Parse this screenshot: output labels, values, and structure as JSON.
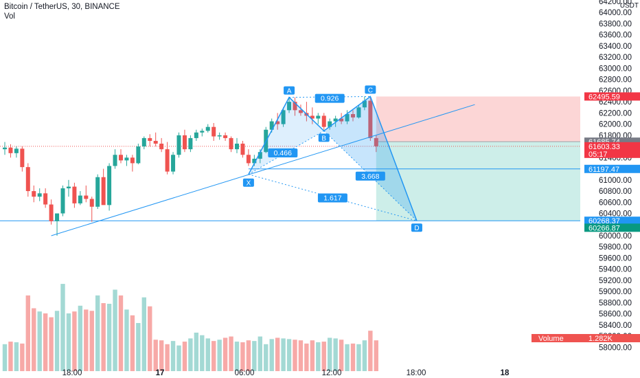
{
  "legend": {
    "symbol": "Bitcoin / TetherUS, 30, BINANCE",
    "indicator": "Vol"
  },
  "chart_data": {
    "type": "candlestick",
    "quote_unit": "USDT",
    "ylim": [
      57820,
      64200
    ],
    "y_ticks": [
      64200,
      64000,
      63800,
      63600,
      63400,
      63200,
      63000,
      62800,
      62600,
      62400,
      62200,
      62000,
      61800,
      61600,
      61400,
      61200,
      61000,
      60800,
      60600,
      60400,
      60200,
      60000,
      59800,
      59600,
      59400,
      59200,
      59000,
      58800,
      58600,
      58400,
      58200,
      58000
    ],
    "x_ticks": [
      {
        "label": "18:00",
        "bold": false
      },
      {
        "label": "17",
        "bold": true
      },
      {
        "label": "06:00",
        "bold": false
      },
      {
        "label": "12:00",
        "bold": false
      },
      {
        "label": "18:00",
        "bold": false
      },
      {
        "label": "18",
        "bold": true
      }
    ],
    "candles": [
      {
        "o": 61550,
        "h": 61680,
        "l": 61450,
        "c": 61580
      },
      {
        "o": 61580,
        "h": 61640,
        "l": 61400,
        "c": 61480
      },
      {
        "o": 61480,
        "h": 61600,
        "l": 61400,
        "c": 61560
      },
      {
        "o": 61560,
        "h": 61600,
        "l": 61150,
        "c": 61230
      },
      {
        "o": 61230,
        "h": 61300,
        "l": 60700,
        "c": 60800
      },
      {
        "o": 60800,
        "h": 60900,
        "l": 60600,
        "c": 60700
      },
      {
        "o": 60700,
        "h": 60850,
        "l": 60620,
        "c": 60760
      },
      {
        "o": 60760,
        "h": 60850,
        "l": 60500,
        "c": 60560
      },
      {
        "o": 60560,
        "h": 60650,
        "l": 60200,
        "c": 60260
      },
      {
        "o": 60260,
        "h": 60400,
        "l": 60000,
        "c": 60400
      },
      {
        "o": 60400,
        "h": 60900,
        "l": 60350,
        "c": 60850
      },
      {
        "o": 60850,
        "h": 61000,
        "l": 60700,
        "c": 60880
      },
      {
        "o": 60880,
        "h": 60950,
        "l": 60500,
        "c": 60580
      },
      {
        "o": 60580,
        "h": 60800,
        "l": 60550,
        "c": 60720
      },
      {
        "o": 60720,
        "h": 60900,
        "l": 60600,
        "c": 60660
      },
      {
        "o": 60660,
        "h": 60700,
        "l": 60250,
        "c": 60520
      },
      {
        "o": 60520,
        "h": 61100,
        "l": 60480,
        "c": 61050
      },
      {
        "o": 61050,
        "h": 61200,
        "l": 60600,
        "c": 60550
      },
      {
        "o": 60550,
        "h": 61300,
        "l": 60450,
        "c": 61250
      },
      {
        "o": 61250,
        "h": 61550,
        "l": 61200,
        "c": 61450
      },
      {
        "o": 61450,
        "h": 61550,
        "l": 61300,
        "c": 61350
      },
      {
        "o": 61350,
        "h": 61450,
        "l": 61250,
        "c": 61400
      },
      {
        "o": 61400,
        "h": 61450,
        "l": 61150,
        "c": 61300
      },
      {
        "o": 61300,
        "h": 61650,
        "l": 61280,
        "c": 61600
      },
      {
        "o": 61600,
        "h": 61780,
        "l": 61550,
        "c": 61750
      },
      {
        "o": 61750,
        "h": 61820,
        "l": 61600,
        "c": 61700
      },
      {
        "o": 61700,
        "h": 61850,
        "l": 61600,
        "c": 61650
      },
      {
        "o": 61650,
        "h": 61750,
        "l": 61500,
        "c": 61550
      },
      {
        "o": 61550,
        "h": 61680,
        "l": 61100,
        "c": 61150
      },
      {
        "o": 61150,
        "h": 61500,
        "l": 61100,
        "c": 61450
      },
      {
        "o": 61450,
        "h": 61850,
        "l": 61400,
        "c": 61800
      },
      {
        "o": 61800,
        "h": 61900,
        "l": 61500,
        "c": 61550
      },
      {
        "o": 61550,
        "h": 61800,
        "l": 61500,
        "c": 61750
      },
      {
        "o": 61750,
        "h": 61900,
        "l": 61700,
        "c": 61850
      },
      {
        "o": 61850,
        "h": 61920,
        "l": 61780,
        "c": 61880
      },
      {
        "o": 61880,
        "h": 62000,
        "l": 61850,
        "c": 61950
      },
      {
        "o": 61950,
        "h": 62020,
        "l": 61700,
        "c": 61780
      },
      {
        "o": 61780,
        "h": 61850,
        "l": 61720,
        "c": 61800
      },
      {
        "o": 61800,
        "h": 61850,
        "l": 61700,
        "c": 61750
      },
      {
        "o": 61750,
        "h": 61780,
        "l": 61500,
        "c": 61550
      },
      {
        "o": 61550,
        "h": 61750,
        "l": 61480,
        "c": 61650
      },
      {
        "o": 61650,
        "h": 61700,
        "l": 61400,
        "c": 61450
      },
      {
        "o": 61450,
        "h": 61550,
        "l": 61250,
        "c": 61300
      },
      {
        "o": 61300,
        "h": 61450,
        "l": 61250,
        "c": 61380
      },
      {
        "o": 61380,
        "h": 61550,
        "l": 61300,
        "c": 61500
      },
      {
        "o": 61500,
        "h": 61950,
        "l": 61480,
        "c": 61900
      },
      {
        "o": 61900,
        "h": 62100,
        "l": 61850,
        "c": 62050
      },
      {
        "o": 62050,
        "h": 62200,
        "l": 61900,
        "c": 62000
      },
      {
        "o": 62000,
        "h": 62300,
        "l": 61950,
        "c": 62250
      },
      {
        "o": 62250,
        "h": 62480,
        "l": 62200,
        "c": 62400
      },
      {
        "o": 62400,
        "h": 62480,
        "l": 62150,
        "c": 62250
      },
      {
        "o": 62250,
        "h": 62350,
        "l": 62150,
        "c": 62200
      },
      {
        "o": 62200,
        "h": 62400,
        "l": 62050,
        "c": 62150
      },
      {
        "o": 62150,
        "h": 62300,
        "l": 62000,
        "c": 62100
      },
      {
        "o": 62100,
        "h": 62200,
        "l": 62000,
        "c": 62150
      },
      {
        "o": 62150,
        "h": 62200,
        "l": 61900,
        "c": 61950
      },
      {
        "o": 61950,
        "h": 62100,
        "l": 61900,
        "c": 62050
      },
      {
        "o": 62050,
        "h": 62150,
        "l": 61950,
        "c": 62100
      },
      {
        "o": 62100,
        "h": 62200,
        "l": 62000,
        "c": 62050
      },
      {
        "o": 62050,
        "h": 62250,
        "l": 62000,
        "c": 62180
      },
      {
        "o": 62180,
        "h": 62250,
        "l": 62050,
        "c": 62120
      },
      {
        "o": 62120,
        "h": 62350,
        "l": 62100,
        "c": 62300
      },
      {
        "o": 62300,
        "h": 62495,
        "l": 62250,
        "c": 62420
      },
      {
        "o": 62420,
        "h": 62495,
        "l": 61700,
        "c": 61750
      },
      {
        "o": 61750,
        "h": 61800,
        "l": 61500,
        "c": 61603
      }
    ],
    "volume": {
      "label": "Volume",
      "value": "1.282K",
      "max": 1500,
      "values": [
        420,
        460,
        450,
        430,
        1180,
        980,
        930,
        900,
        840,
        940,
        1360,
        900,
        930,
        1020,
        960,
        940,
        1180,
        1060,
        1050,
        1270,
        1180,
        960,
        870,
        750,
        1150,
        1010,
        490,
        480,
        420,
        470,
        400,
        460,
        510,
        600,
        560,
        510,
        470,
        490,
        520,
        540,
        460,
        450,
        480,
        470,
        540,
        420,
        500,
        520,
        510,
        500,
        490,
        480,
        430,
        480,
        450,
        460,
        520,
        510,
        490,
        420,
        430,
        420,
        480,
        630,
        480
      ],
      "up": [
        true,
        false,
        true,
        false,
        false,
        false,
        true,
        false,
        false,
        true,
        true,
        true,
        false,
        true,
        false,
        false,
        true,
        false,
        true,
        true,
        false,
        true,
        false,
        true,
        true,
        false,
        false,
        false,
        false,
        true,
        true,
        false,
        true,
        true,
        true,
        true,
        false,
        true,
        false,
        false,
        true,
        false,
        false,
        true,
        true,
        true,
        true,
        false,
        true,
        true,
        false,
        false,
        false,
        false,
        true,
        false,
        true,
        true,
        false,
        true,
        false,
        true,
        true,
        false,
        false
      ]
    },
    "harmonic_pattern": {
      "points": [
        {
          "label": "X",
          "price": 61100
        },
        {
          "label": "A",
          "price": 62480
        },
        {
          "label": "B",
          "price": 61880
        },
        {
          "label": "C",
          "price": 62495
        },
        {
          "label": "D",
          "price": 60268
        }
      ],
      "ratios": [
        {
          "label": "0.926"
        },
        {
          "label": "0.466"
        },
        {
          "label": "3.668"
        },
        {
          "label": "1.617"
        }
      ]
    },
    "position": {
      "stop_price": 62495.59,
      "entry_price": 61685.74,
      "target_price": 60268.37
    },
    "trendline": {
      "from_price": 60000,
      "to_price": 62350
    },
    "price_tags": [
      {
        "value": "62495.59",
        "bg": "#f23645"
      },
      {
        "value": "61685.74",
        "bg": "#787b86"
      },
      {
        "value": "61603.33",
        "bg": "#f23645"
      },
      {
        "value": "05:17",
        "bg": "#f23645"
      },
      {
        "value": "61197.47",
        "bg": "#2196f3"
      },
      {
        "value": "60268.37",
        "bg": "#2196f3"
      },
      {
        "value": "60266.87",
        "bg": "#089981"
      }
    ],
    "colors": {
      "up": "#26a69a",
      "down": "#ef5350",
      "vol_up": "#a3d9d4",
      "vol_down": "#f7a9a7",
      "pattern": "#2196f3",
      "pattern_fill": "#2196f3",
      "stop_zone": "#fcd6d6",
      "target_zone": "#cdeee9"
    }
  }
}
